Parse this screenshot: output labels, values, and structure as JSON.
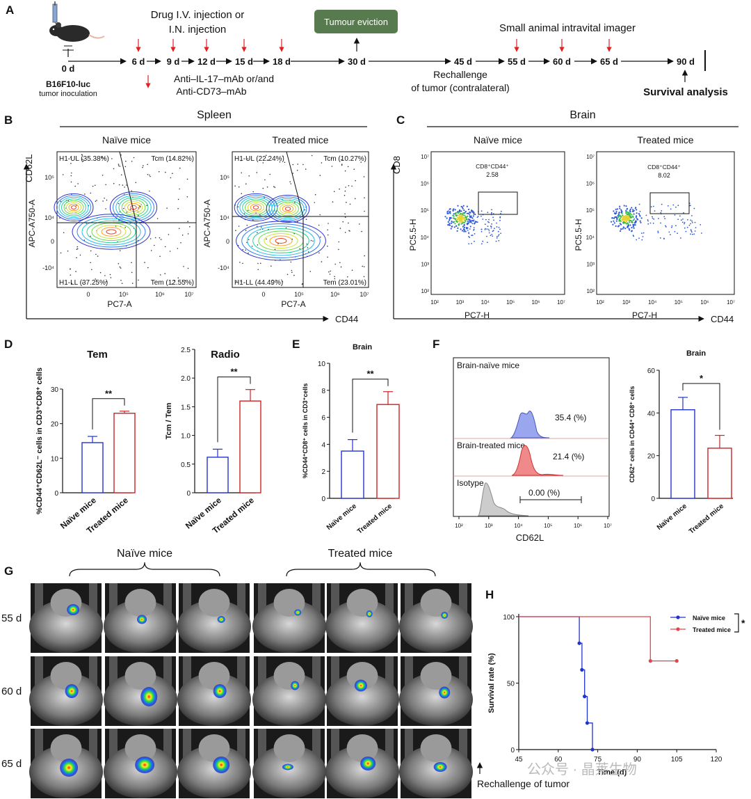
{
  "panels": {
    "A": {
      "label": "A",
      "mouse_day": "0 d",
      "cell_line": "B16F10-luc",
      "inoculation": "tumor inoculation",
      "drug_line1": "Drug I.V. injection or",
      "drug_line2": "I.N. injection",
      "tumour_eviction": "Tumour eviction",
      "imager": "Small animal intravital imager",
      "days": [
        "6 d",
        "9 d",
        "12 d",
        "15 d",
        "18 d",
        "30 d",
        "45 d",
        "55 d",
        "60 d",
        "65 d",
        "90 d"
      ],
      "ab_line1": "Anti–IL-17–mAb or/and",
      "ab_line2": "Anti-CD73–mAb",
      "rechallenge_line1": "Rechallenge",
      "rechallenge_line2": "of tumor (contralateral)",
      "survival": "Survival analysis"
    },
    "B": {
      "label": "B",
      "title": "Spleen",
      "y_outer": "CD62L",
      "x_outer": "CD44",
      "plots": [
        {
          "title": "Naïve mice",
          "ul": "H1-UL (35.38%)",
          "ur": "Tcm (14.82%)",
          "ll": "H1-LL (37.25%)",
          "lr": "Tem (12.55%)",
          "xlabel": "PC7-A",
          "ylabel": "APC-A750-A"
        },
        {
          "title": "Treated mice",
          "ul": "H1-UL (22.24%)",
          "ur": "Tcm (10.27%)",
          "ll": "H1-LL (44.49%)",
          "lr": "Tem (23.01%)",
          "xlabel": "PC7-A",
          "ylabel": "APC-A750-A"
        }
      ],
      "xticks": [
        "0",
        "10⁵",
        "10⁶",
        "10⁷"
      ],
      "yticks": [
        "10⁵",
        "10⁴",
        "0",
        "-10⁴"
      ]
    },
    "C": {
      "label": "C",
      "title": "Brain",
      "y_outer": "CD8",
      "x_outer": "CD44",
      "plots": [
        {
          "title": "Naïve mice",
          "gate": "CD8⁺CD44⁺",
          "value": "2.58",
          "xlabel": "PC7-H",
          "ylabel": "PC5.5-H"
        },
        {
          "title": "Treated mice",
          "gate": "CD8⁺CD44⁺",
          "value": "8.02",
          "xlabel": "PC7-H",
          "ylabel": "PC5.5-H"
        }
      ],
      "xticks": [
        "10²",
        "10³",
        "10⁴",
        "10⁵",
        "10⁶",
        "10⁷"
      ],
      "yticks": [
        "10⁷",
        "10⁶",
        "10⁵",
        "10⁴",
        "10³",
        "10²"
      ]
    },
    "D": {
      "label": "D"
    },
    "E": {
      "label": "E"
    },
    "F": {
      "label": "F",
      "hist_labels": [
        "Brain-naïve mice",
        "Brain-treated mice",
        "Isotype"
      ],
      "hist_values": [
        "35.4 (%)",
        "21.4 (%)",
        "0.00 (%)"
      ],
      "xlabel": "CD62L",
      "xticks": [
        "10²",
        "10³",
        "10⁴",
        "10⁵",
        "10⁶",
        "10⁷"
      ]
    },
    "G": {
      "label": "G",
      "group1": "Naïve mice",
      "group2": "Treated mice",
      "rows": [
        "55 d",
        "60 d",
        "65 d"
      ]
    },
    "H": {
      "label": "H",
      "rechallenge": "Rechallenge of tumor"
    }
  },
  "watermark": "公众号 · 晶莱生物",
  "chart_data": [
    {
      "id": "D1",
      "type": "bar",
      "title": "Tem",
      "ylabel": "%CD44⁺CD62L⁻ cells in CD3⁺CD8⁺ cells",
      "categories": [
        "Naïve mice",
        "Treated mice"
      ],
      "values": [
        14.5,
        23.0
      ],
      "errors": [
        1.8,
        0.6
      ],
      "ylim": [
        0,
        30
      ],
      "yticks": [
        0,
        10,
        20,
        30
      ],
      "significance": "**",
      "colors": [
        "#2233cc",
        "#cc2222"
      ]
    },
    {
      "id": "D2",
      "type": "bar",
      "title": "Radio",
      "ylabel": "Tcm / Tem",
      "categories": [
        "Naïve mice",
        "Treated mice"
      ],
      "values": [
        0.62,
        1.6
      ],
      "errors": [
        0.14,
        0.2
      ],
      "ylim": [
        0,
        2.5
      ],
      "yticks": [
        0,
        0.5,
        1.0,
        1.5,
        2.0,
        2.5
      ],
      "significance": "**",
      "colors": [
        "#2233cc",
        "#cc2222"
      ]
    },
    {
      "id": "E",
      "type": "bar",
      "title": "Brain",
      "ylabel": "%CD44⁺CD8⁺ cells in CD3⁺cells",
      "categories": [
        "Naïve mice",
        "Treated mice"
      ],
      "values": [
        3.5,
        6.95
      ],
      "errors": [
        0.85,
        0.95
      ],
      "ylim": [
        0,
        10
      ],
      "yticks": [
        0,
        2,
        4,
        6,
        8,
        10
      ],
      "significance": "**",
      "colors": [
        "#2233cc",
        "#cc2222"
      ]
    },
    {
      "id": "F",
      "type": "bar",
      "title": "Brain",
      "ylabel": "CD62⁺ cells in CD44⁺ CD8⁺ cells",
      "categories": [
        "Naïve mice",
        "Treated mice"
      ],
      "values": [
        41.5,
        23.5
      ],
      "errors": [
        5.8,
        6.0
      ],
      "ylim": [
        0,
        60
      ],
      "yticks": [
        0,
        20,
        40,
        60
      ],
      "significance": "*",
      "colors": [
        "#2233cc",
        "#cc2222"
      ]
    },
    {
      "id": "H",
      "type": "line",
      "xlabel": "Time (d)",
      "ylabel": "Survival rate (%)",
      "xlim": [
        45,
        120
      ],
      "ylim": [
        0,
        100
      ],
      "xticks": [
        45,
        60,
        75,
        90,
        105,
        120
      ],
      "yticks": [
        0,
        50,
        100
      ],
      "significance": "*",
      "series": [
        {
          "name": "Naïve mice",
          "color": "#2233cc",
          "x": [
            45,
            68,
            68,
            69,
            69,
            70,
            70,
            71,
            71,
            73,
            73
          ],
          "y": [
            100,
            100,
            80,
            80,
            60,
            60,
            40,
            40,
            20,
            20,
            0
          ]
        },
        {
          "name": "Treated mice",
          "color": "#e0474c",
          "x": [
            45,
            95,
            95,
            105
          ],
          "y": [
            100,
            100,
            66.7,
            66.7
          ]
        }
      ]
    }
  ]
}
